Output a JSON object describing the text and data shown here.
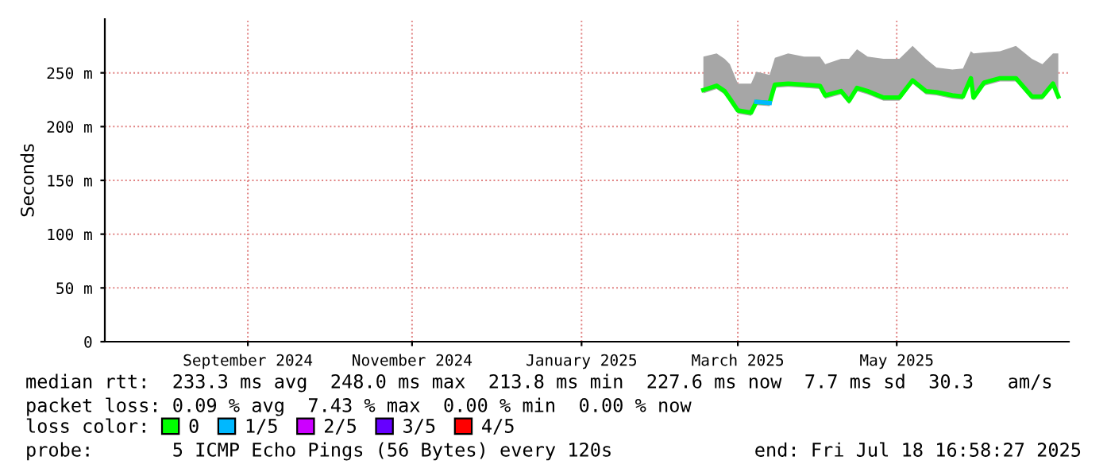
{
  "chart_data": {
    "type": "line",
    "ylabel": "Seconds",
    "x": [
      "2025-03-06",
      "2025-03-11",
      "2025-03-14",
      "2025-03-16",
      "2025-03-19",
      "2025-03-24",
      "2025-03-26",
      "2025-03-31",
      "2025-04-02",
      "2025-04-07",
      "2025-04-13",
      "2025-04-19",
      "2025-04-21",
      "2025-04-27",
      "2025-04-30",
      "2025-05-03",
      "2025-05-07",
      "2025-05-13",
      "2025-05-19",
      "2025-05-24",
      "2025-05-29",
      "2025-06-02",
      "2025-06-08",
      "2025-06-12",
      "2025-06-15",
      "2025-06-16",
      "2025-06-20",
      "2025-06-26",
      "2025-07-02",
      "2025-07-08",
      "2025-07-12",
      "2025-07-16",
      "2025-07-18"
    ],
    "series": [
      {
        "name": "0",
        "color": "#00ff00",
        "values": [
          234,
          238,
          233,
          226,
          215,
          213,
          223,
          222,
          239,
          240,
          239,
          238,
          229,
          233,
          224,
          236,
          233,
          227,
          227,
          243,
          233,
          232,
          229,
          228,
          245,
          227,
          241,
          245,
          245,
          228,
          228,
          240,
          228
        ],
        "lower": [
          231,
          235,
          230,
          223,
          212,
          210,
          220,
          219,
          236,
          237,
          236,
          235,
          226,
          230,
          221,
          233,
          230,
          224,
          224,
          240,
          230,
          229,
          226,
          225,
          242,
          224,
          238,
          242,
          242,
          225,
          225,
          237,
          225
        ],
        "upper": [
          265,
          268,
          263,
          258,
          240,
          240,
          251,
          248,
          264,
          268,
          265,
          265,
          258,
          263,
          263,
          272,
          265,
          263,
          263,
          275,
          263,
          255,
          253,
          254,
          270,
          268,
          269,
          270,
          275,
          263,
          258,
          268,
          268
        ]
      },
      {
        "name": "1/5",
        "color": "#00b8ff",
        "values": [
          null,
          null,
          null,
          null,
          null,
          null,
          223,
          222,
          null,
          null,
          null,
          null,
          null,
          null,
          null,
          null,
          null,
          null,
          null,
          null,
          null,
          null,
          null,
          null,
          null,
          null,
          null,
          null,
          null,
          null,
          null,
          null,
          null
        ]
      },
      {
        "name": "2/5",
        "color": "#cc00ff",
        "values": [
          null,
          null,
          null,
          null,
          null,
          null,
          null,
          null,
          null,
          null,
          null,
          null,
          null,
          null,
          null,
          null,
          null,
          null,
          null,
          null,
          null,
          null,
          null,
          null,
          null,
          null,
          null,
          null,
          null,
          null,
          null,
          null,
          null
        ]
      },
      {
        "name": "3/5",
        "color": "#6600ff",
        "values": [
          null,
          null,
          null,
          null,
          null,
          null,
          null,
          null,
          null,
          null,
          null,
          null,
          null,
          null,
          null,
          null,
          null,
          null,
          null,
          null,
          null,
          null,
          null,
          null,
          null,
          null,
          null,
          null,
          null,
          null,
          null,
          null,
          null
        ]
      },
      {
        "name": "4/5",
        "color": "#ff0000",
        "values": [
          null,
          null,
          null,
          null,
          null,
          null,
          null,
          null,
          null,
          null,
          null,
          null,
          null,
          null,
          null,
          null,
          null,
          null,
          null,
          null,
          null,
          null,
          null,
          null,
          null,
          null,
          null,
          null,
          null,
          null,
          null,
          null,
          null
        ]
      }
    ],
    "xlim": [
      "2024-07-23",
      "2025-07-22"
    ],
    "xticks": [
      {
        "value": "2024-09-15",
        "label": "September 2024"
      },
      {
        "value": "2024-11-16",
        "label": "November 2024"
      },
      {
        "value": "2025-01-19",
        "label": "January 2025"
      },
      {
        "value": "2025-03-19",
        "label": "March 2025"
      },
      {
        "value": "2025-05-18",
        "label": "May 2025"
      }
    ],
    "ylim": [
      0,
      300
    ],
    "yticks": [
      0,
      {
        "value": 50,
        "label": "50 m"
      },
      {
        "value": 100,
        "label": "100 m"
      },
      {
        "value": 150,
        "label": "150 m"
      },
      {
        "value": 200,
        "label": "200 m"
      },
      {
        "value": 250,
        "label": "250 m"
      }
    ],
    "grid": true,
    "legend": "bottom",
    "legend_title": "loss color:",
    "marker": "none",
    "line_style": "solid",
    "annotations": [
      "median rtt:  233.3 ms avg  248.0 ms max  213.8 ms min  227.6 ms now  7.7 ms sd  30.3   am/s",
      "packet loss: 0.09 % avg  7.43 % max  0.00 % min  0.00 % now",
      "probe:       5 ICMP Echo Pings (56 Bytes) every 120s",
      "end: Fri Jul 18 16:58:27 2025"
    ]
  }
}
